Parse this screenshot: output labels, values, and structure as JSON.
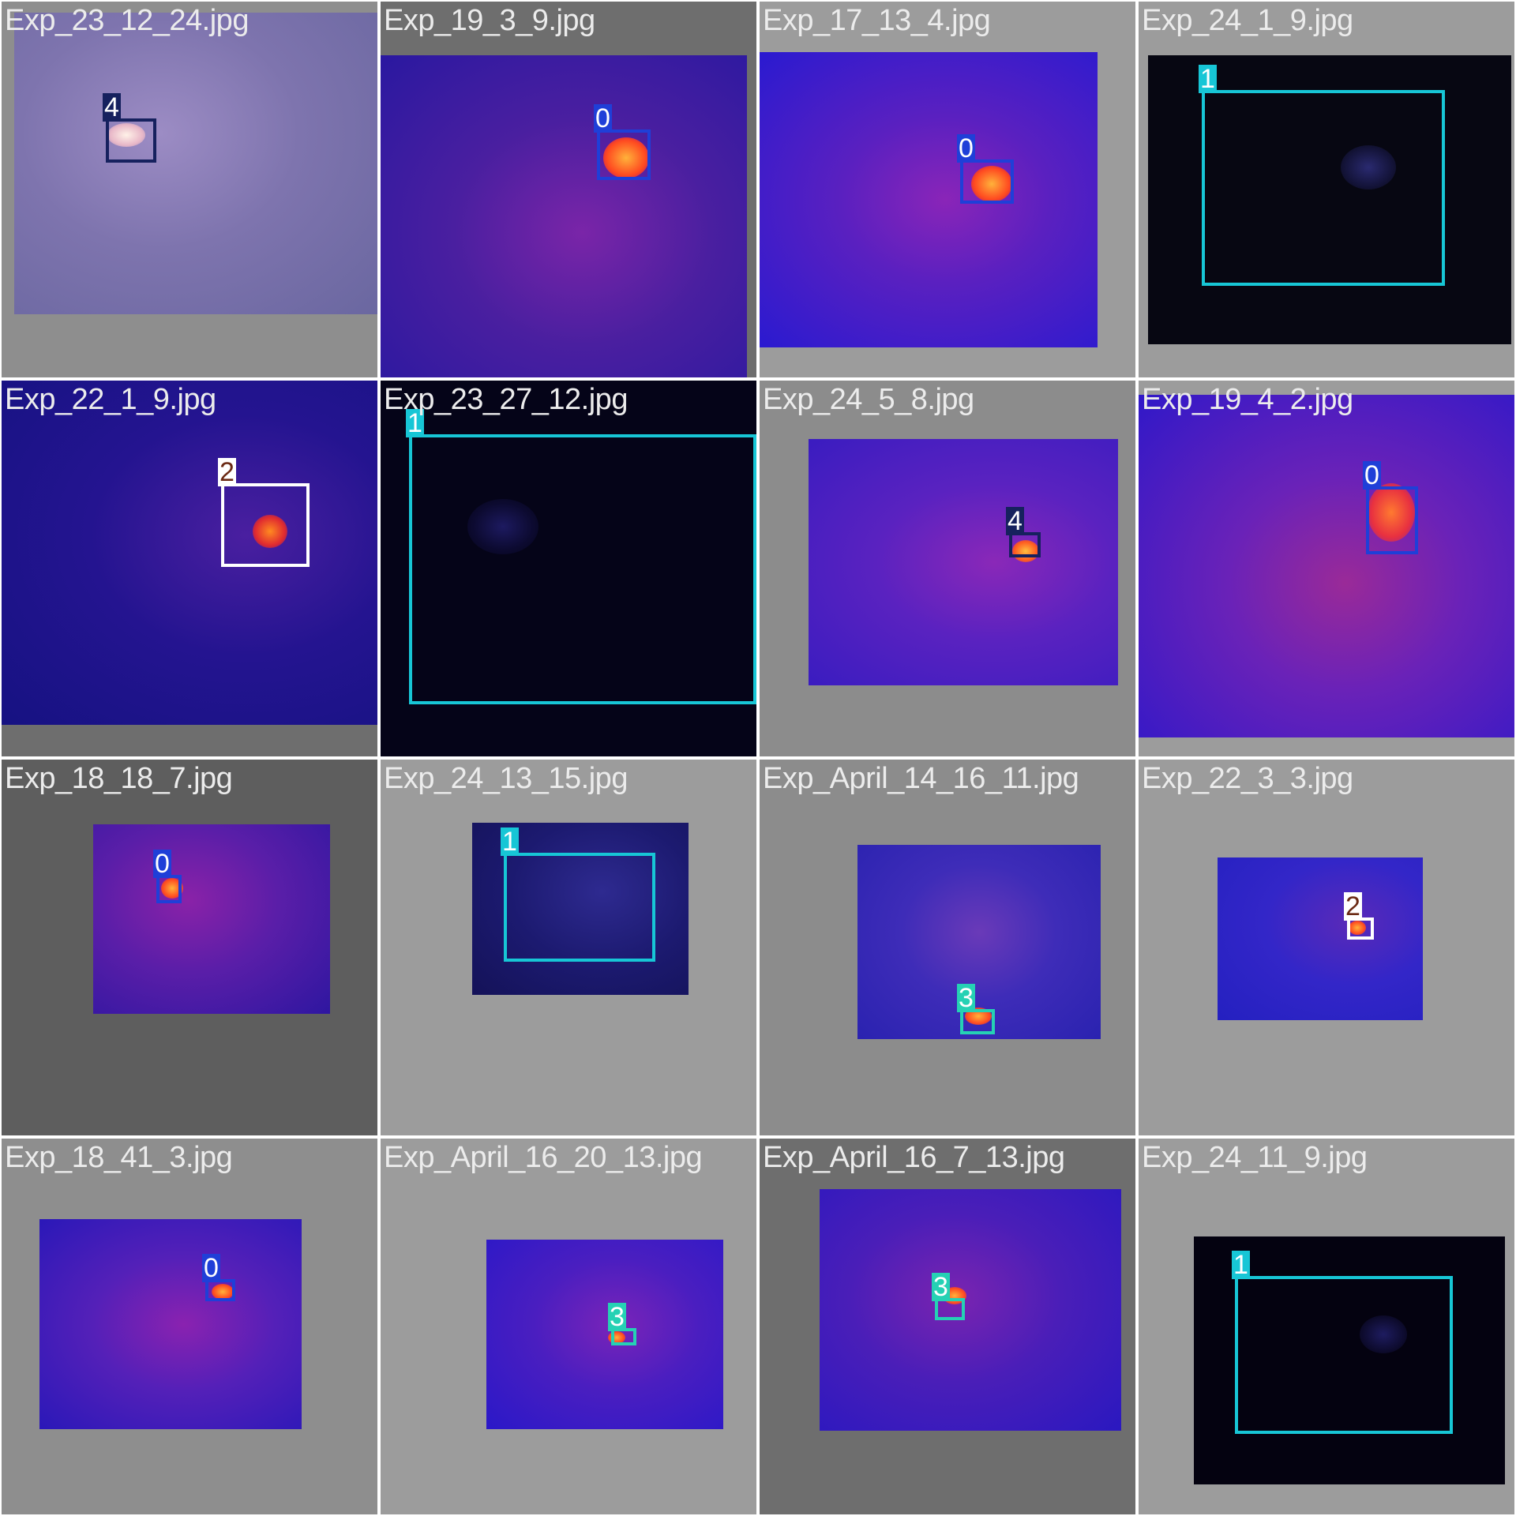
{
  "tiles": [
    {
      "filename": "Exp_23_12_24.jpg"
    },
    {
      "filename": "Exp_19_3_9.jpg"
    },
    {
      "filename": "Exp_17_13_4.jpg"
    },
    {
      "filename": "Exp_24_1_9.jpg"
    },
    {
      "filename": "Exp_22_1_9.jpg"
    },
    {
      "filename": "Exp_23_27_12.jpg"
    },
    {
      "filename": "Exp_24_5_8.jpg"
    },
    {
      "filename": "Exp_19_4_2.jpg"
    },
    {
      "filename": "Exp_18_18_7.jpg"
    },
    {
      "filename": "Exp_24_13_15.jpg"
    },
    {
      "filename": "Exp_April_14_16_11.jpg"
    },
    {
      "filename": "Exp_22_3_3.jpg"
    },
    {
      "filename": "Exp_18_41_3.jpg"
    },
    {
      "filename": "Exp_April_16_20_13.jpg"
    },
    {
      "filename": "Exp_April_16_7_13.jpg"
    },
    {
      "filename": "Exp_24_11_9.jpg"
    }
  ],
  "labels": {
    "t0": "4",
    "t1": "0",
    "t2": "0",
    "t3": "1",
    "t4": "2",
    "t5": "1",
    "t6": "4",
    "t7": "0",
    "t8": "0",
    "t9": "1",
    "t10": "3",
    "t11": "2",
    "t12": "0",
    "t13": "3",
    "t14": "3",
    "t15": "1"
  },
  "class_colors": {
    "0": "#1f3fd8",
    "1": "#17c6d6",
    "2": "#ffffff",
    "3": "#25d1b4",
    "4": "#16215e"
  }
}
